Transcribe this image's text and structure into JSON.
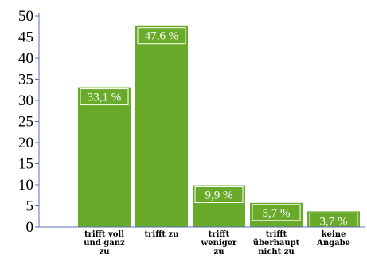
{
  "chart_data": {
    "type": "bar",
    "categories": [
      [
        "trifft voll",
        "und ganz",
        "zu"
      ],
      [
        "trifft zu"
      ],
      [
        "trifft",
        "weniger",
        "zu"
      ],
      [
        "trifft",
        "überhaupt",
        "nicht zu"
      ],
      [
        "keine",
        "Angabe"
      ]
    ],
    "values": [
      33.1,
      47.6,
      9.9,
      5.7,
      3.7
    ],
    "value_labels": [
      "33,1 %",
      "47,6 %",
      "9,9 %",
      "5,7 %",
      "3,7 %"
    ],
    "ylim": [
      0,
      50
    ],
    "yticks": [
      0,
      5,
      10,
      15,
      20,
      25,
      30,
      35,
      40,
      45,
      50
    ],
    "title": "",
    "xlabel": "",
    "ylabel": "",
    "grid": false,
    "bar_color": "#6aaa2a",
    "label_box_color": "#ffffff"
  }
}
